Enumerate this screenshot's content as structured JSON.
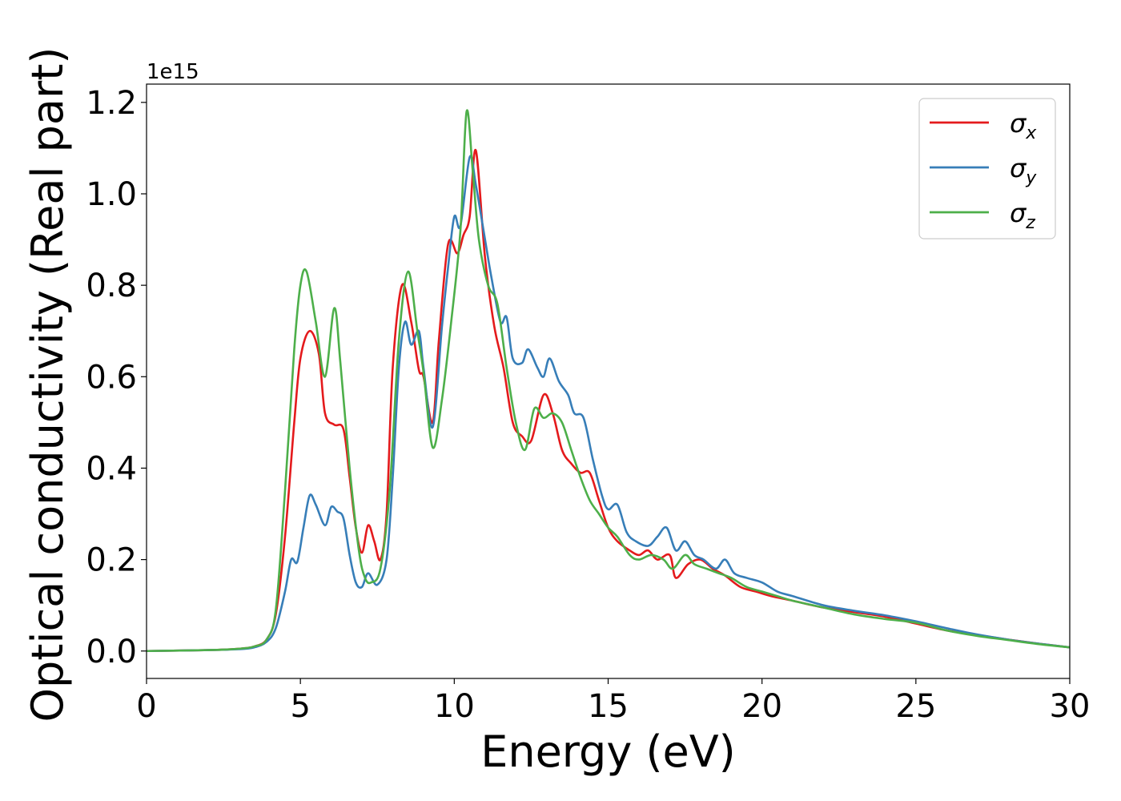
{
  "chart_data": {
    "type": "line",
    "xlabel": "Energy (eV)",
    "ylabel": "Optical conductivity (Real part)",
    "y_offset_text": "1e15",
    "xlim": [
      0,
      30
    ],
    "ylim": [
      -0.06,
      1.24
    ],
    "x_ticks": [
      0,
      5,
      10,
      15,
      20,
      25,
      30
    ],
    "x_tick_labels": [
      "0",
      "5",
      "10",
      "15",
      "20",
      "25",
      "30"
    ],
    "y_ticks": [
      0.0,
      0.2,
      0.4,
      0.6,
      0.8,
      1.0,
      1.2
    ],
    "y_tick_labels": [
      "0.0",
      "0.2",
      "0.4",
      "0.6",
      "0.8",
      "1.0",
      "1.2"
    ],
    "grid": false,
    "legend_position": "top-right",
    "series": [
      {
        "name": "σ",
        "subscript": "x",
        "color": "#e41a1c",
        "points": [
          [
            0,
            0
          ],
          [
            2,
            0.002
          ],
          [
            3,
            0.005
          ],
          [
            3.5,
            0.01
          ],
          [
            3.9,
            0.025
          ],
          [
            4.2,
            0.08
          ],
          [
            4.5,
            0.25
          ],
          [
            4.8,
            0.5
          ],
          [
            5.0,
            0.64
          ],
          [
            5.3,
            0.7
          ],
          [
            5.6,
            0.65
          ],
          [
            5.8,
            0.52
          ],
          [
            6.1,
            0.495
          ],
          [
            6.4,
            0.485
          ],
          [
            6.6,
            0.38
          ],
          [
            6.8,
            0.27
          ],
          [
            7.0,
            0.215
          ],
          [
            7.2,
            0.275
          ],
          [
            7.4,
            0.24
          ],
          [
            7.6,
            0.2
          ],
          [
            7.8,
            0.3
          ],
          [
            8.0,
            0.62
          ],
          [
            8.3,
            0.8
          ],
          [
            8.6,
            0.72
          ],
          [
            8.85,
            0.615
          ],
          [
            9.0,
            0.6
          ],
          [
            9.3,
            0.5
          ],
          [
            9.5,
            0.68
          ],
          [
            9.8,
            0.89
          ],
          [
            10.1,
            0.87
          ],
          [
            10.3,
            0.91
          ],
          [
            10.5,
            0.95
          ],
          [
            10.7,
            1.095
          ],
          [
            11.0,
            0.86
          ],
          [
            11.3,
            0.71
          ],
          [
            11.6,
            0.62
          ],
          [
            11.9,
            0.5
          ],
          [
            12.2,
            0.47
          ],
          [
            12.5,
            0.46
          ],
          [
            12.9,
            0.56
          ],
          [
            13.2,
            0.52
          ],
          [
            13.5,
            0.44
          ],
          [
            13.8,
            0.41
          ],
          [
            14.1,
            0.39
          ],
          [
            14.4,
            0.39
          ],
          [
            14.7,
            0.33
          ],
          [
            15.0,
            0.27
          ],
          [
            15.3,
            0.24
          ],
          [
            15.7,
            0.22
          ],
          [
            16.0,
            0.21
          ],
          [
            16.3,
            0.22
          ],
          [
            16.6,
            0.2
          ],
          [
            17.0,
            0.21
          ],
          [
            17.2,
            0.16
          ],
          [
            17.6,
            0.19
          ],
          [
            18.0,
            0.2
          ],
          [
            18.4,
            0.18
          ],
          [
            18.8,
            0.165
          ],
          [
            19.3,
            0.14
          ],
          [
            19.8,
            0.13
          ],
          [
            20.3,
            0.12
          ],
          [
            21,
            0.11
          ],
          [
            22,
            0.095
          ],
          [
            23,
            0.085
          ],
          [
            24,
            0.075
          ],
          [
            25,
            0.06
          ],
          [
            26,
            0.045
          ],
          [
            27,
            0.035
          ],
          [
            28,
            0.025
          ],
          [
            29,
            0.016
          ],
          [
            30,
            0.008
          ]
        ]
      },
      {
        "name": "σ",
        "subscript": "y",
        "color": "#377eb8",
        "points": [
          [
            0,
            0
          ],
          [
            2,
            0.002
          ],
          [
            3,
            0.004
          ],
          [
            3.5,
            0.008
          ],
          [
            3.9,
            0.02
          ],
          [
            4.2,
            0.05
          ],
          [
            4.5,
            0.13
          ],
          [
            4.7,
            0.2
          ],
          [
            4.9,
            0.195
          ],
          [
            5.1,
            0.27
          ],
          [
            5.3,
            0.34
          ],
          [
            5.5,
            0.32
          ],
          [
            5.8,
            0.275
          ],
          [
            6.0,
            0.315
          ],
          [
            6.2,
            0.305
          ],
          [
            6.4,
            0.29
          ],
          [
            6.6,
            0.21
          ],
          [
            6.8,
            0.15
          ],
          [
            7.0,
            0.14
          ],
          [
            7.2,
            0.17
          ],
          [
            7.5,
            0.145
          ],
          [
            7.8,
            0.2
          ],
          [
            8.0,
            0.38
          ],
          [
            8.2,
            0.62
          ],
          [
            8.4,
            0.72
          ],
          [
            8.6,
            0.67
          ],
          [
            8.85,
            0.7
          ],
          [
            9.0,
            0.62
          ],
          [
            9.3,
            0.49
          ],
          [
            9.6,
            0.71
          ],
          [
            9.8,
            0.84
          ],
          [
            10.0,
            0.95
          ],
          [
            10.2,
            0.93
          ],
          [
            10.5,
            1.08
          ],
          [
            10.7,
            1.02
          ],
          [
            11.0,
            0.9
          ],
          [
            11.2,
            0.82
          ],
          [
            11.5,
            0.72
          ],
          [
            11.7,
            0.73
          ],
          [
            11.9,
            0.64
          ],
          [
            12.2,
            0.63
          ],
          [
            12.4,
            0.66
          ],
          [
            12.7,
            0.62
          ],
          [
            12.9,
            0.6
          ],
          [
            13.1,
            0.64
          ],
          [
            13.4,
            0.59
          ],
          [
            13.7,
            0.56
          ],
          [
            13.9,
            0.52
          ],
          [
            14.2,
            0.51
          ],
          [
            14.5,
            0.42
          ],
          [
            14.8,
            0.34
          ],
          [
            15.0,
            0.31
          ],
          [
            15.3,
            0.32
          ],
          [
            15.6,
            0.26
          ],
          [
            15.9,
            0.24
          ],
          [
            16.3,
            0.23
          ],
          [
            16.6,
            0.25
          ],
          [
            16.9,
            0.27
          ],
          [
            17.2,
            0.22
          ],
          [
            17.5,
            0.24
          ],
          [
            17.8,
            0.21
          ],
          [
            18.1,
            0.2
          ],
          [
            18.5,
            0.18
          ],
          [
            18.8,
            0.2
          ],
          [
            19.1,
            0.17
          ],
          [
            19.5,
            0.16
          ],
          [
            20.0,
            0.15
          ],
          [
            20.5,
            0.13
          ],
          [
            21,
            0.12
          ],
          [
            22,
            0.1
          ],
          [
            23,
            0.088
          ],
          [
            24,
            0.078
          ],
          [
            25,
            0.065
          ],
          [
            26,
            0.05
          ],
          [
            27,
            0.036
          ],
          [
            28,
            0.025
          ],
          [
            29,
            0.016
          ],
          [
            30,
            0.008
          ]
        ]
      },
      {
        "name": "σ",
        "subscript": "z",
        "color": "#4daf4a",
        "points": [
          [
            0,
            0
          ],
          [
            2,
            0.002
          ],
          [
            3,
            0.005
          ],
          [
            3.5,
            0.01
          ],
          [
            3.9,
            0.025
          ],
          [
            4.2,
            0.09
          ],
          [
            4.5,
            0.35
          ],
          [
            4.8,
            0.66
          ],
          [
            5.0,
            0.8
          ],
          [
            5.2,
            0.83
          ],
          [
            5.5,
            0.72
          ],
          [
            5.8,
            0.6
          ],
          [
            6.1,
            0.75
          ],
          [
            6.3,
            0.63
          ],
          [
            6.6,
            0.4
          ],
          [
            6.9,
            0.22
          ],
          [
            7.1,
            0.16
          ],
          [
            7.3,
            0.15
          ],
          [
            7.6,
            0.18
          ],
          [
            7.9,
            0.35
          ],
          [
            8.2,
            0.68
          ],
          [
            8.5,
            0.83
          ],
          [
            8.8,
            0.7
          ],
          [
            9.0,
            0.61
          ],
          [
            9.3,
            0.445
          ],
          [
            9.6,
            0.55
          ],
          [
            9.9,
            0.72
          ],
          [
            10.2,
            0.92
          ],
          [
            10.4,
            1.18
          ],
          [
            10.6,
            1.05
          ],
          [
            10.8,
            0.9
          ],
          [
            11.1,
            0.8
          ],
          [
            11.4,
            0.76
          ],
          [
            11.7,
            0.62
          ],
          [
            12.0,
            0.5
          ],
          [
            12.3,
            0.44
          ],
          [
            12.6,
            0.53
          ],
          [
            12.9,
            0.51
          ],
          [
            13.2,
            0.52
          ],
          [
            13.5,
            0.5
          ],
          [
            13.8,
            0.44
          ],
          [
            14.1,
            0.38
          ],
          [
            14.4,
            0.33
          ],
          [
            14.7,
            0.3
          ],
          [
            15.0,
            0.27
          ],
          [
            15.3,
            0.25
          ],
          [
            15.7,
            0.21
          ],
          [
            16.0,
            0.2
          ],
          [
            16.4,
            0.21
          ],
          [
            16.8,
            0.2
          ],
          [
            17.1,
            0.18
          ],
          [
            17.5,
            0.21
          ],
          [
            17.8,
            0.19
          ],
          [
            18.2,
            0.18
          ],
          [
            18.6,
            0.17
          ],
          [
            19.0,
            0.16
          ],
          [
            19.5,
            0.14
          ],
          [
            20.0,
            0.13
          ],
          [
            20.5,
            0.12
          ],
          [
            21,
            0.11
          ],
          [
            22,
            0.095
          ],
          [
            23,
            0.08
          ],
          [
            24,
            0.07
          ],
          [
            25,
            0.062
          ],
          [
            26,
            0.045
          ],
          [
            27,
            0.033
          ],
          [
            28,
            0.024
          ],
          [
            29,
            0.015
          ],
          [
            30,
            0.008
          ]
        ]
      }
    ]
  }
}
